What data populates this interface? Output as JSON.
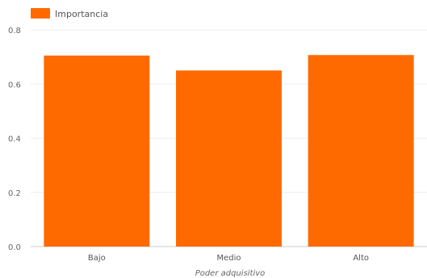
{
  "chart_data": {
    "type": "bar",
    "categories": [
      "Bajo",
      "Medio",
      "Alto"
    ],
    "series": [
      {
        "name": "Importancia",
        "values": [
          0.705,
          0.65,
          0.707
        ],
        "color": "#ff6a00"
      }
    ],
    "xlabel": "Poder adquisitivo",
    "ylabel": "",
    "ylim": [
      0,
      0.8
    ],
    "yticks": [
      "0.0",
      "0.2",
      "0.4",
      "0.6",
      "0.8"
    ],
    "grid": true,
    "legend_position": "top-left"
  }
}
